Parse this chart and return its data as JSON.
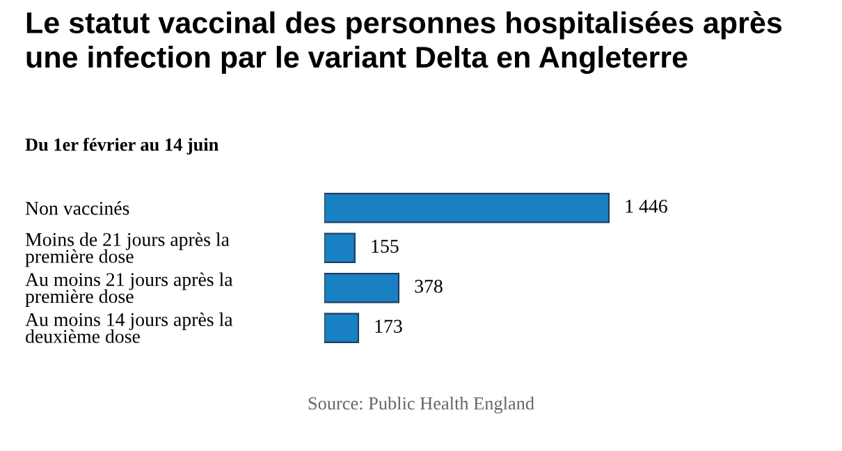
{
  "chart_data": {
    "type": "bar",
    "orientation": "horizontal",
    "title": "Le statut vaccinal des personnes hospitalisées après\nune infection par le variant Delta en Angleterre",
    "subtitle": "Du 1er février au 14 juin",
    "categories": [
      "Non vaccinés",
      "Moins de 21 jours après la\npremière dose",
      "Au moins 21 jours après la\npremière dose",
      "Au moins 14 jours après la\ndeuxième dose"
    ],
    "values": [
      1446,
      155,
      378,
      173
    ],
    "value_labels": [
      "1 446",
      "155",
      "378",
      "173"
    ],
    "color": "#1a80c4",
    "annotations": [
      "Source: Public Health England"
    ]
  }
}
